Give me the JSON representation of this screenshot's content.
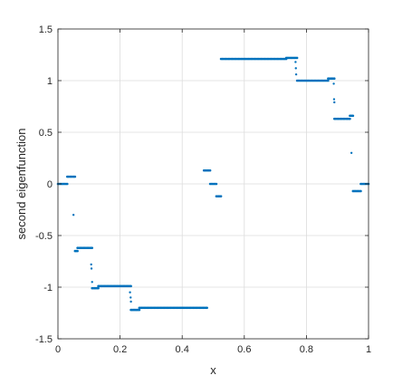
{
  "chart_data": {
    "type": "scatter",
    "xlabel": "x",
    "ylabel": "second eigenfunction",
    "xlim": [
      0,
      1
    ],
    "ylim": [
      -1.5,
      1.5
    ],
    "xticks": [
      0,
      0.2,
      0.4,
      0.6,
      0.8,
      1
    ],
    "xtick_labels": [
      "0",
      "0.2",
      "0.4",
      "0.6",
      "0.8",
      "1"
    ],
    "yticks": [
      -1.5,
      -1,
      -0.5,
      0,
      0.5,
      1,
      1.5
    ],
    "ytick_labels": [
      "-1.5",
      "-1",
      "-0.5",
      "0",
      "0.5",
      "1",
      "1.5"
    ],
    "grid": true,
    "marker_color": "#0072BD",
    "segments": [
      {
        "x": [
          0.0,
          0.03
        ],
        "y": 0.0
      },
      {
        "x": [
          0.03,
          0.055
        ],
        "y": 0.07
      },
      {
        "x": [
          0.055,
          0.063
        ],
        "y": -0.65
      },
      {
        "x": [
          0.063,
          0.11
        ],
        "y": -0.62
      },
      {
        "x": [
          0.11,
          0.13
        ],
        "y": -1.01
      },
      {
        "x": [
          0.13,
          0.235
        ],
        "y": -0.99
      },
      {
        "x": [
          0.235,
          0.262
        ],
        "y": -1.22
      },
      {
        "x": [
          0.262,
          0.48
        ],
        "y": -1.2
      },
      {
        "x": [
          0.47,
          0.49
        ],
        "y": 0.13
      },
      {
        "x": [
          0.49,
          0.51
        ],
        "y": 0.0
      },
      {
        "x": [
          0.51,
          0.525
        ],
        "y": -0.12
      },
      {
        "x": [
          0.525,
          0.735
        ],
        "y": 1.21
      },
      {
        "x": [
          0.735,
          0.77
        ],
        "y": 1.22
      },
      {
        "x": [
          0.77,
          0.87
        ],
        "y": 1.0
      },
      {
        "x": [
          0.87,
          0.89
        ],
        "y": 1.02
      },
      {
        "x": [
          0.89,
          0.94
        ],
        "y": 0.63
      },
      {
        "x": [
          0.94,
          0.95
        ],
        "y": 0.66
      },
      {
        "x": [
          0.95,
          0.975
        ],
        "y": -0.07
      },
      {
        "x": [
          0.975,
          1.0
        ],
        "y": 0.0
      }
    ],
    "points": [
      {
        "x": 0.05,
        "y": -0.3
      },
      {
        "x": 0.107,
        "y": -0.78
      },
      {
        "x": 0.108,
        "y": -0.82
      },
      {
        "x": 0.11,
        "y": -0.95
      },
      {
        "x": 0.232,
        "y": -1.05
      },
      {
        "x": 0.234,
        "y": -1.1
      },
      {
        "x": 0.235,
        "y": -1.14
      },
      {
        "x": 0.765,
        "y": 1.18
      },
      {
        "x": 0.766,
        "y": 1.12
      },
      {
        "x": 0.767,
        "y": 1.06
      },
      {
        "x": 0.888,
        "y": 0.97
      },
      {
        "x": 0.889,
        "y": 0.82
      },
      {
        "x": 0.89,
        "y": 0.79
      },
      {
        "x": 0.945,
        "y": 0.3
      }
    ]
  }
}
